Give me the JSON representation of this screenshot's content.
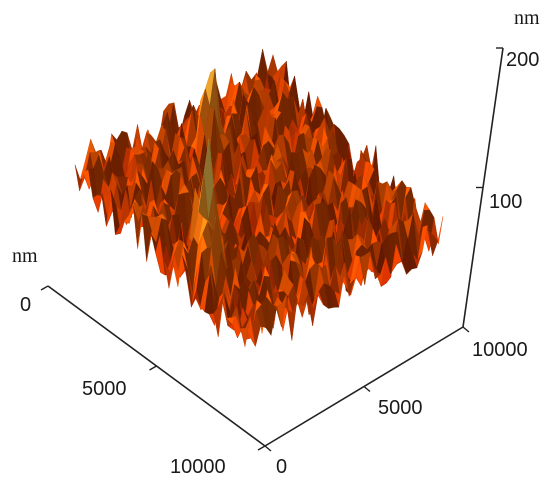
{
  "chart_data": {
    "type": "surface3d",
    "title": "",
    "x_axis": {
      "unit": "nm",
      "ticks": [
        0,
        5000,
        10000
      ],
      "range": [
        0,
        10000
      ]
    },
    "y_axis": {
      "unit": "nm",
      "ticks": [
        0,
        5000,
        10000
      ],
      "range": [
        0,
        10000
      ]
    },
    "z_axis": {
      "unit": "nm",
      "ticks": [
        100,
        200
      ],
      "range": [
        0,
        200
      ]
    },
    "surface": {
      "baseline_height": 45,
      "roughness_amplitude": 40,
      "peaks": [
        {
          "x": 6000,
          "y": 1500,
          "height": 160
        },
        {
          "x": 2000,
          "y": 5200,
          "height": 120
        },
        {
          "x": 7000,
          "y": 1000,
          "height": 95
        }
      ]
    },
    "colormap": [
      "#7a1400",
      "#b32a00",
      "#e05000",
      "#ff7a10",
      "#ffb030",
      "#ffe880"
    ]
  }
}
